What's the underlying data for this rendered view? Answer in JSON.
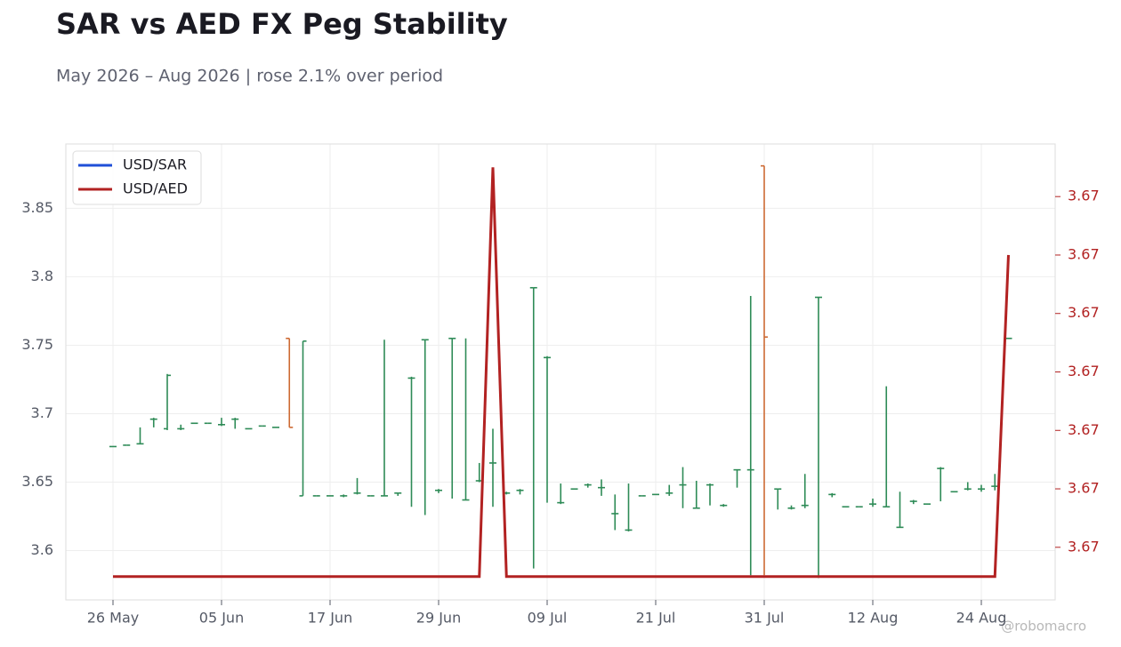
{
  "chart_data": {
    "type": "ohlc",
    "title": "SAR vs AED FX Peg Stability",
    "subtitle": "May 2026 – Aug 2026 | rose 2.1% over period",
    "watermark": "@robomacro",
    "categories": [
      "26 May",
      null,
      null,
      null,
      null,
      null,
      null,
      null,
      "05 Jun",
      null,
      null,
      null,
      null,
      null,
      null,
      null,
      "17 Jun",
      null,
      null,
      null,
      null,
      null,
      null,
      null,
      "29 Jun",
      null,
      null,
      null,
      null,
      null,
      null,
      null,
      "09 Jul",
      null,
      null,
      null,
      null,
      null,
      null,
      null,
      "21 Jul",
      null,
      null,
      null,
      null,
      null,
      null,
      null,
      "31 Jul",
      null,
      null,
      null,
      null,
      null,
      null,
      null,
      "12 Aug",
      null,
      null,
      null,
      null,
      null,
      null,
      null,
      "24 Aug",
      null,
      null
    ],
    "series": [
      {
        "name": "USD/SAR",
        "color": "#1f4fd8",
        "up_color": "#2e8b57",
        "down_color": "#cd6a33",
        "open": [
          3.676,
          3.677,
          3.678,
          3.696,
          3.689,
          3.689,
          3.693,
          3.693,
          3.692,
          3.696,
          3.689,
          3.691,
          3.69,
          3.755,
          3.64,
          3.64,
          3.64,
          3.64,
          3.642,
          3.64,
          3.64,
          3.642,
          3.726,
          3.754,
          3.644,
          3.755,
          3.637,
          3.651,
          3.664,
          3.642,
          3.644,
          3.792,
          3.741,
          3.635,
          3.645,
          3.648,
          3.646,
          3.627,
          3.615,
          3.64,
          3.641,
          3.642,
          3.648,
          3.631,
          3.648,
          3.633,
          3.659,
          3.659,
          3.881,
          3.645,
          3.631,
          3.633,
          3.785,
          3.641,
          3.632,
          3.632,
          3.634,
          3.632,
          3.617,
          3.636,
          3.634,
          3.66,
          3.643,
          3.645,
          3.645,
          3.647,
          3.755
        ],
        "high": [
          3.676,
          3.677,
          3.69,
          3.697,
          3.729,
          3.692,
          3.693,
          3.693,
          3.697,
          3.697,
          3.689,
          3.691,
          3.69,
          3.755,
          3.753,
          3.64,
          3.64,
          3.641,
          3.653,
          3.64,
          3.754,
          3.642,
          3.727,
          3.754,
          3.645,
          3.755,
          3.755,
          3.664,
          3.689,
          3.643,
          3.645,
          3.792,
          3.742,
          3.649,
          3.645,
          3.649,
          3.652,
          3.641,
          3.649,
          3.64,
          3.641,
          3.648,
          3.661,
          3.651,
          3.649,
          3.634,
          3.659,
          3.786,
          3.881,
          3.645,
          3.633,
          3.656,
          3.785,
          3.642,
          3.632,
          3.632,
          3.638,
          3.72,
          3.643,
          3.637,
          3.634,
          3.661,
          3.643,
          3.65,
          3.648,
          3.656,
          3.755
        ],
        "low": [
          3.676,
          3.677,
          3.678,
          3.69,
          3.688,
          3.688,
          3.693,
          3.693,
          3.691,
          3.689,
          3.689,
          3.691,
          3.69,
          3.69,
          3.64,
          3.64,
          3.64,
          3.639,
          3.641,
          3.64,
          3.64,
          3.64,
          3.632,
          3.626,
          3.642,
          3.638,
          3.637,
          3.65,
          3.632,
          3.641,
          3.641,
          3.587,
          3.635,
          3.634,
          3.645,
          3.646,
          3.64,
          3.615,
          3.614,
          3.64,
          3.641,
          3.64,
          3.631,
          3.631,
          3.633,
          3.632,
          3.646,
          3.582,
          3.582,
          3.63,
          3.63,
          3.631,
          3.58,
          3.639,
          3.632,
          3.632,
          3.632,
          3.632,
          3.617,
          3.634,
          3.634,
          3.636,
          3.643,
          3.644,
          3.643,
          3.644,
          3.755
        ],
        "close": [
          3.676,
          3.677,
          3.678,
          3.696,
          3.728,
          3.689,
          3.693,
          3.693,
          3.692,
          3.696,
          3.689,
          3.691,
          3.69,
          3.69,
          3.753,
          3.64,
          3.64,
          3.64,
          3.642,
          3.64,
          3.64,
          3.642,
          3.726,
          3.754,
          3.644,
          3.755,
          3.637,
          3.651,
          3.664,
          3.642,
          3.644,
          3.792,
          3.741,
          3.635,
          3.645,
          3.648,
          3.646,
          3.627,
          3.615,
          3.64,
          3.641,
          3.642,
          3.648,
          3.631,
          3.648,
          3.633,
          3.659,
          3.659,
          3.756,
          3.645,
          3.631,
          3.633,
          3.785,
          3.641,
          3.632,
          3.632,
          3.634,
          3.632,
          3.617,
          3.636,
          3.634,
          3.66,
          3.643,
          3.645,
          3.645,
          3.647,
          3.755
        ]
      },
      {
        "name": "USD/AED",
        "color": "#b22222",
        "axis": "y2",
        "type": "line",
        "values": [
          3.672445,
          3.672445,
          3.672445,
          3.672445,
          3.672445,
          3.672445,
          3.672445,
          3.672445,
          3.672445,
          3.672445,
          3.672445,
          3.672445,
          3.672445,
          3.672445,
          3.672445,
          3.672445,
          3.672445,
          3.672445,
          3.672445,
          3.672445,
          3.672445,
          3.672445,
          3.672445,
          3.672445,
          3.672445,
          3.672445,
          3.672445,
          3.672445,
          3.672515,
          3.672445,
          3.672445,
          3.672445,
          3.672445,
          3.672445,
          3.672445,
          3.672445,
          3.672445,
          3.672445,
          3.672445,
          3.672445,
          3.672445,
          3.672445,
          3.672445,
          3.672445,
          3.672445,
          3.672445,
          3.672445,
          3.672445,
          3.672445,
          3.672445,
          3.672445,
          3.672445,
          3.672445,
          3.672445,
          3.672445,
          3.672445,
          3.672445,
          3.672445,
          3.672445,
          3.672445,
          3.672445,
          3.672445,
          3.672445,
          3.672445,
          3.672445,
          3.672445,
          3.6725
        ]
      }
    ],
    "ylim": [
      3.564,
      3.897
    ],
    "yticks": [
      3.6,
      3.65,
      3.7,
      3.75,
      3.8,
      3.85
    ],
    "y2lim": [
      3.672441,
      3.672519
    ],
    "y2ticks": [
      {
        "value": 3.67245,
        "label": "3.67"
      },
      {
        "value": 3.67246,
        "label": "3.67"
      },
      {
        "value": 3.67247,
        "label": "3.67"
      },
      {
        "value": 3.67248,
        "label": "3.67"
      },
      {
        "value": 3.67249,
        "label": "3.67"
      },
      {
        "value": 3.6725,
        "label": "3.67"
      },
      {
        "value": 3.67251,
        "label": "3.67"
      }
    ],
    "y2_color": "#b22222",
    "grid": true,
    "legend": "upper left"
  }
}
